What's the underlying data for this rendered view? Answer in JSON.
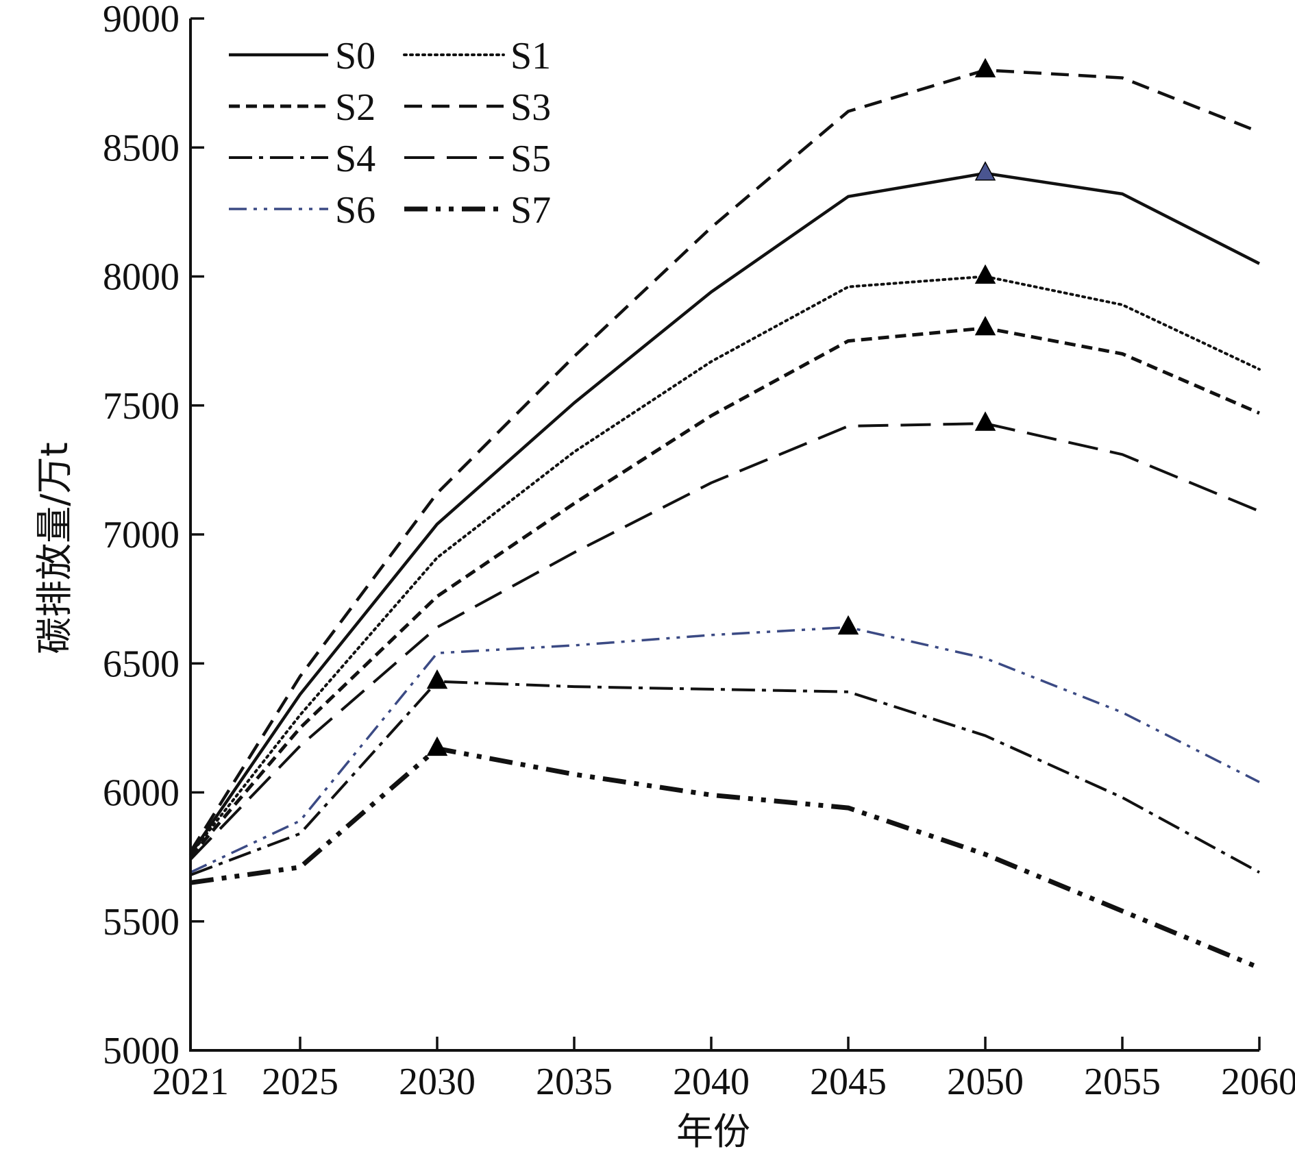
{
  "chart_data": {
    "type": "line",
    "title": "",
    "xlabel": "年份",
    "ylabel": "碳排放量/万t",
    "xlim": [
      2021,
      2060
    ],
    "ylim": [
      5000,
      9000
    ],
    "x_ticks": [
      "2021",
      "2025",
      "2030",
      "2035",
      "2040",
      "2045",
      "2050",
      "2055",
      "2060"
    ],
    "y_ticks": [
      "5000",
      "5500",
      "6000",
      "6500",
      "7000",
      "7500",
      "8000",
      "8500",
      "9000"
    ],
    "grid": false,
    "legend_position": "top-left",
    "series": [
      {
        "name": "S0",
        "color": "#111111",
        "dash": "solid",
        "width": 4.5,
        "x": [
          2021,
          2025,
          2030,
          2035,
          2040,
          2045,
          2050,
          2055,
          2060
        ],
        "y": [
          5760,
          6380,
          7040,
          7510,
          7940,
          8310,
          8400,
          8320,
          8050
        ],
        "peak": {
          "x": 2050,
          "y": 8400,
          "marker_color": "#4a5590"
        }
      },
      {
        "name": "S1",
        "color": "#111111",
        "dash": "dotted",
        "width": 4,
        "x": [
          2021,
          2025,
          2030,
          2035,
          2040,
          2045,
          2050,
          2055,
          2060
        ],
        "y": [
          5760,
          6300,
          6910,
          7320,
          7670,
          7960,
          8000,
          7890,
          7640
        ],
        "peak": {
          "x": 2050,
          "y": 8000,
          "marker_color": "#000000"
        }
      },
      {
        "name": "S2",
        "color": "#111111",
        "dash": "short-dash",
        "width": 5,
        "x": [
          2021,
          2025,
          2030,
          2035,
          2040,
          2045,
          2050,
          2055,
          2060
        ],
        "y": [
          5750,
          6250,
          6760,
          7120,
          7460,
          7750,
          7800,
          7700,
          7470
        ],
        "peak": {
          "x": 2050,
          "y": 7800,
          "marker_color": "#000000"
        }
      },
      {
        "name": "S3",
        "color": "#111111",
        "dash": "dashed",
        "width": 4.5,
        "x": [
          2021,
          2025,
          2030,
          2035,
          2040,
          2045,
          2050,
          2055,
          2060
        ],
        "y": [
          5770,
          6450,
          7160,
          7690,
          8190,
          8640,
          8800,
          8770,
          8560
        ],
        "peak": {
          "x": 2050,
          "y": 8800,
          "marker_color": "#000000"
        }
      },
      {
        "name": "S4",
        "color": "#111111",
        "dash": "dash-dot",
        "width": 4,
        "x": [
          2021,
          2025,
          2030,
          2035,
          2040,
          2045,
          2050,
          2055,
          2060
        ],
        "y": [
          5680,
          5840,
          6430,
          6410,
          6400,
          6390,
          6220,
          5980,
          5690
        ],
        "peak": {
          "x": 2030,
          "y": 6430,
          "marker_color": "#000000"
        }
      },
      {
        "name": "S5",
        "color": "#111111",
        "dash": "long-dash",
        "width": 4,
        "x": [
          2021,
          2025,
          2030,
          2035,
          2040,
          2045,
          2050,
          2055,
          2060
        ],
        "y": [
          5740,
          6180,
          6640,
          6930,
          7200,
          7420,
          7430,
          7310,
          7090
        ],
        "peak": {
          "x": 2050,
          "y": 7430,
          "marker_color": "#000000"
        }
      },
      {
        "name": "S6",
        "color": "#3b4a84",
        "dash": "dash-dot-dot",
        "width": 3.5,
        "x": [
          2021,
          2025,
          2030,
          2035,
          2040,
          2045,
          2050,
          2055,
          2060
        ],
        "y": [
          5690,
          5890,
          6540,
          6570,
          6610,
          6640,
          6520,
          6310,
          6040
        ],
        "peak": {
          "x": 2045,
          "y": 6640,
          "marker_color": "#000000"
        }
      },
      {
        "name": "S7",
        "color": "#111111",
        "dash": "heavy-dash-dot-dot",
        "width": 7,
        "x": [
          2021,
          2025,
          2030,
          2035,
          2040,
          2045,
          2050,
          2055,
          2060
        ],
        "y": [
          5650,
          5710,
          6170,
          6070,
          5990,
          5940,
          5760,
          5540,
          5320
        ],
        "peak": {
          "x": 2030,
          "y": 6170,
          "marker_color": "#000000"
        }
      }
    ]
  }
}
